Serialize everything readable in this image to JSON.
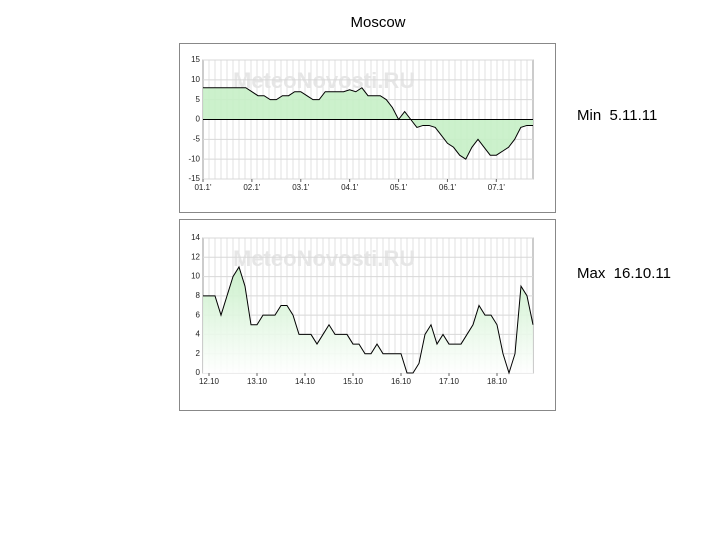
{
  "title": "Moscow",
  "chart_data": [
    {
      "type": "line",
      "watermark": "MeteoNovosti.RU",
      "annotation": "Min  5.11.11",
      "color": "#000000",
      "fill": "#c6efc6",
      "x": [
        0,
        0.5,
        0.875,
        1.125,
        1.25,
        1.375,
        1.5,
        1.625,
        1.75,
        1.875,
        2.0,
        2.125,
        2.25,
        2.375,
        2.5,
        2.75,
        2.875,
        3.0,
        3.125,
        3.25,
        3.375,
        3.625,
        3.75,
        3.875,
        4.0,
        4.125,
        4.25,
        4.375,
        4.5,
        4.625,
        4.75,
        4.875,
        5.0,
        5.125,
        5.25,
        5.375,
        5.5,
        5.625,
        5.75,
        5.875,
        6.0,
        6.125,
        6.25,
        6.375,
        6.5,
        6.625,
        6.75
      ],
      "values": [
        8,
        8,
        8,
        6,
        6,
        5,
        5,
        6,
        6,
        7,
        7,
        6,
        5,
        5,
        7,
        7,
        7,
        7.5,
        7,
        8,
        6,
        6,
        5,
        3,
        0,
        2,
        0,
        -2,
        -1.5,
        -1.5,
        -2,
        -4,
        -6,
        -7,
        -9,
        -10,
        -7,
        -5,
        -7,
        -9,
        -9,
        -8,
        -7,
        -5,
        -2,
        -1.5,
        -1.5
      ],
      "xlim": [
        0,
        6.75
      ],
      "ylim": [
        -15,
        15
      ],
      "yticks": [
        -15,
        -10,
        -5,
        0,
        5,
        10,
        15
      ],
      "xticks": [
        {
          "value": 0,
          "label": "01.1'"
        },
        {
          "value": 1,
          "label": "02.1'"
        },
        {
          "value": 2,
          "label": "03.1'"
        },
        {
          "value": 3,
          "label": "04.1'"
        },
        {
          "value": 4,
          "label": "05.1'"
        },
        {
          "value": 5,
          "label": "06.1'"
        },
        {
          "value": 6,
          "label": "07.1'"
        }
      ]
    },
    {
      "type": "line",
      "watermark": "MeteoNovosti.RU",
      "annotation": "Max  16.10.11",
      "color": "#000000",
      "fill": "#c6efc6",
      "x": [
        -0.125,
        0.125,
        0.25,
        0.375,
        0.5,
        0.625,
        0.75,
        0.875,
        1.0,
        1.125,
        1.375,
        1.5,
        1.625,
        1.75,
        1.875,
        2.125,
        2.25,
        2.375,
        2.5,
        2.625,
        2.875,
        3.0,
        3.125,
        3.25,
        3.375,
        3.5,
        3.625,
        4.0,
        4.125,
        4.25,
        4.375,
        4.5,
        4.625,
        4.75,
        4.875,
        5.0,
        5.25,
        5.375,
        5.5,
        5.625,
        5.75,
        5.875,
        6.0,
        6.125,
        6.25,
        6.375,
        6.5,
        6.625,
        6.75
      ],
      "values": [
        8,
        8,
        6,
        8,
        10,
        11,
        9,
        5,
        5,
        6,
        6,
        7,
        7,
        6,
        4,
        4,
        3,
        4,
        5,
        4,
        4,
        3,
        3,
        2,
        2,
        3,
        2,
        2,
        0,
        0,
        1,
        4,
        5,
        3,
        4,
        3,
        3,
        4,
        5,
        7,
        6,
        6,
        5,
        2,
        0,
        2,
        9,
        8,
        5
      ],
      "xlim": [
        -0.125,
        6.75
      ],
      "ylim": [
        0,
        14
      ],
      "yticks": [
        0,
        2,
        4,
        6,
        8,
        10,
        12,
        14
      ],
      "xticks": [
        {
          "value": 0,
          "label": "12.10"
        },
        {
          "value": 1,
          "label": "13.10"
        },
        {
          "value": 2,
          "label": "14.10"
        },
        {
          "value": 3,
          "label": "15.10"
        },
        {
          "value": 4,
          "label": "16.10"
        },
        {
          "value": 5,
          "label": "17.10"
        },
        {
          "value": 6,
          "label": "18.10"
        }
      ]
    }
  ]
}
